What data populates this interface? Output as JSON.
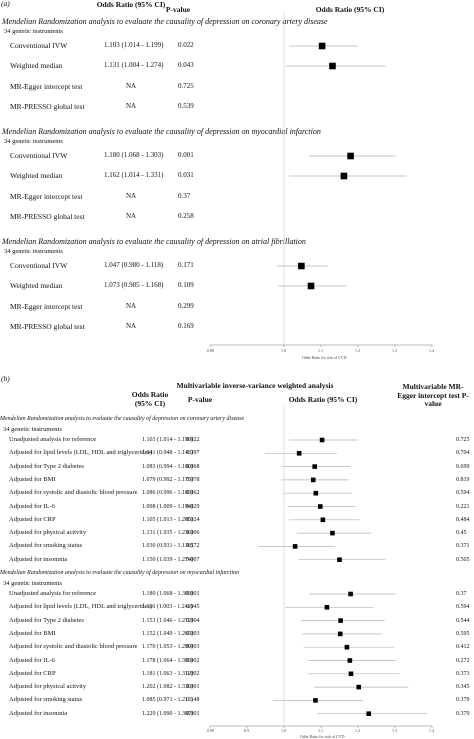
{
  "panel_a": {
    "label": "(a)",
    "headers": {
      "or_ci": "Odds Ratio (95% CI)",
      "pvalue": "P-value",
      "plot": "Odds Ratio (95% CI)"
    },
    "sections": [
      {
        "title": "Mendelian Randomization analysis to evaluate the causality of depression on coronary artery disease",
        "instruments": "34 genetic instruments",
        "rows": [
          {
            "method": "Conventional IVW",
            "or_ci": "1.103 (1.014 - 1.199)",
            "p": "0.022"
          },
          {
            "method": "Weighted median",
            "or_ci": "1.131 (1.004 - 1.274)",
            "p": "0.043"
          },
          {
            "method": "MR-Egger intercept test",
            "or_ci": "NA",
            "p": "0.725"
          },
          {
            "method": "MR-PRESSO global test",
            "or_ci": "NA",
            "p": "0.539"
          }
        ]
      },
      {
        "title": "Mendelian Randomization analysis to evaluate the causality of depression on myocardial infarction",
        "instruments": "34 genetic instruments",
        "rows": [
          {
            "method": "Conventional IVW",
            "or_ci": "1.180 (1.068 - 1.303)",
            "p": "0.001"
          },
          {
            "method": "Weighted median",
            "or_ci": "1.162 (1.014 - 1.331)",
            "p": "0.031"
          },
          {
            "method": "MR-Egger intercept test",
            "or_ci": "NA",
            "p": "0.37"
          },
          {
            "method": "MR-PRESSO global test",
            "or_ci": "NA",
            "p": "0.258"
          }
        ]
      },
      {
        "title": "Mendelian Randomization analysis to evaluate the causality of depression on atrial fibrillation",
        "instruments": "34 genetic instruments",
        "rows": [
          {
            "method": "Conventional IVW",
            "or_ci": "1.047 (0.980 - 1.118)",
            "p": "0.171"
          },
          {
            "method": "Weighted median",
            "or_ci": "1.073 (0.985 - 1.168)",
            "p": "0.109"
          },
          {
            "method": "MR-Egger intercept test",
            "or_ci": "NA",
            "p": "0.299"
          },
          {
            "method": "MR-PRESSO global test",
            "or_ci": "NA",
            "p": "0.169"
          }
        ]
      }
    ],
    "axis_ticks": [
      "0.80",
      "1.0",
      "1.1",
      "1.2",
      "1.3",
      "1.4"
    ],
    "axis_label": "Odds Ratio for risk of CVD"
  },
  "panel_b": {
    "label": "(b)",
    "headers": {
      "group": "Multivariable inverse-variance weighted analysis",
      "or_ci": "Odds Ratio (95% CI)",
      "pvalue": "P-value",
      "plot": "Odds Ratio (95% CI)",
      "egger": "Multivariable MR-Egger intercept test P-value"
    },
    "sections": [
      {
        "title": "Mendelian Randomization analysis to evaluate the causality of depression on coronary artery disease",
        "instruments": "34 genetic instruments",
        "rows": [
          {
            "method": "Unadjusted analysis for reference",
            "or_ci": "1.103 (1.014 - 1.199)",
            "p": "0.022",
            "egger": "0.725"
          },
          {
            "method": "Adjusted for lipid levels (LDL, HDL and triglycerides)",
            "or_ci": "1.041 (0.948 - 1.143)",
            "p": "0.397",
            "egger": "0.704"
          },
          {
            "method": "Adjusted for Type 2 diabetes",
            "or_ci": "1.083 (0.994 - 1.180)",
            "p": "0.068",
            "egger": "0.699"
          },
          {
            "method": "Adjusted for BMI",
            "or_ci": "1.079 (0.992 - 1.175)",
            "p": "0.078",
            "egger": "0.819"
          },
          {
            "method": "Adjusted for systolic and diastolic blood pressure",
            "or_ci": "1.086 (0.996 - 1.183)",
            "p": "0.062",
            "egger": "0.594"
          },
          {
            "method": "Adjusted for IL-6",
            "or_ci": "1.098 (1.009 - 1.194)",
            "p": "0.029",
            "egger": "0.221"
          },
          {
            "method": "Adjusted for CRP",
            "or_ci": "1.105 (1.013 - 1.205)",
            "p": "0.024",
            "egger": "0.484"
          },
          {
            "method": "Adjusted for physical activity",
            "or_ci": "1.131 (1.035 - 1.236)",
            "p": "0.006",
            "egger": "0.45"
          },
          {
            "method": "Adjusted for smoking status",
            "or_ci": "1.030 (0.931 - 1.138)",
            "p": "0.572",
            "egger": "0.371"
          },
          {
            "method": "Adjusted for insomnia",
            "or_ci": "1.150 (1.039 - 1.274)",
            "p": "0.007",
            "egger": "0.505"
          }
        ]
      },
      {
        "title": "Mendelian Randomization analysis to evaluate the causality of depression on myocardial infarction",
        "instruments": "34 genetic instruments",
        "rows": [
          {
            "method": "Unadjusted analysis for reference",
            "or_ci": "1.180 (1.068 - 1.303)",
            "p": "0.001",
            "egger": "0.37"
          },
          {
            "method": "Adjusted for lipid levels (LDL, HDL and triglycerides)",
            "or_ci": "1.116 (1.003 - 1.242)",
            "p": "0.045",
            "egger": "0.594"
          },
          {
            "method": "Adjusted for Type 2 diabetes",
            "or_ci": "1.153 (1.046 - 1.272)",
            "p": "0.004",
            "egger": "0.544"
          },
          {
            "method": "Adjusted for BMI",
            "or_ci": "1.152 (1.049 - 1.265)",
            "p": "0.003",
            "egger": "0.595"
          },
          {
            "method": "Adjusted for systolic and diastolic blood pressure",
            "or_ci": "1.170 (1.053 - 1.299)",
            "p": "0.003",
            "egger": "0.412"
          },
          {
            "method": "Adjusted for IL-6",
            "or_ci": "1.178 (1.064 - 1.303)",
            "p": "0.002",
            "egger": "0.272"
          },
          {
            "method": "Adjusted for CRP",
            "or_ci": "1.181 (1.063 - 1.312)",
            "p": "0.002",
            "egger": "0.373"
          },
          {
            "method": "Adjusted for physical activity",
            "or_ci": "1.202 (1.082 - 1.336)",
            "p": "0.001",
            "egger": "0.345"
          },
          {
            "method": "Adjusted for smoking status",
            "or_ci": "1.085 (0.971 - 1.213)",
            "p": "0.148",
            "egger": "0.379"
          },
          {
            "method": "Adjusted for insomnia",
            "or_ci": "1.229 (1.090 - 1.387)",
            "p": "0.001",
            "egger": "0.379"
          }
        ]
      }
    ],
    "axis_ticks": [
      "0.80",
      "0.9",
      "1.0",
      "1.1",
      "1.2",
      "1.3",
      "1.4"
    ],
    "axis_label": "Odds Ratio for risk of CVD"
  },
  "chart_data": [
    {
      "type": "scatter",
      "subtype": "forest",
      "xlim": [
        0.8,
        1.4
      ],
      "reference_line": 1.0,
      "series": [
        {
          "name": "",
          "points": [
            {
              "or": 1.103,
              "lo": 1.014,
              "hi": 1.199
            },
            {
              "or": 1.131,
              "lo": 1.004,
              "hi": 1.274
            },
            {
              "or": 1.18,
              "lo": 1.068,
              "hi": 1.303
            },
            {
              "or": 1.162,
              "lo": 1.014,
              "hi": 1.331
            },
            {
              "or": 1.047,
              "lo": 0.98,
              "hi": 1.118
            },
            {
              "or": 1.073,
              "lo": 0.985,
              "hi": 1.168
            }
          ]
        }
      ]
    },
    {
      "type": "scatter",
      "subtype": "forest",
      "xlim": [
        0.8,
        1.4
      ],
      "reference_line": 1.0,
      "series": [
        {
          "name": "",
          "points": [
            {
              "or": 1.103,
              "lo": 1.014,
              "hi": 1.199
            },
            {
              "or": 1.041,
              "lo": 0.948,
              "hi": 1.143
            },
            {
              "or": 1.083,
              "lo": 0.994,
              "hi": 1.18
            },
            {
              "or": 1.079,
              "lo": 0.992,
              "hi": 1.175
            },
            {
              "or": 1.086,
              "lo": 0.996,
              "hi": 1.183
            },
            {
              "or": 1.098,
              "lo": 1.009,
              "hi": 1.194
            },
            {
              "or": 1.105,
              "lo": 1.013,
              "hi": 1.205
            },
            {
              "or": 1.131,
              "lo": 1.035,
              "hi": 1.236
            },
            {
              "or": 1.03,
              "lo": 0.931,
              "hi": 1.138
            },
            {
              "or": 1.15,
              "lo": 1.039,
              "hi": 1.274
            },
            {
              "or": 1.18,
              "lo": 1.068,
              "hi": 1.303
            },
            {
              "or": 1.116,
              "lo": 1.003,
              "hi": 1.242
            },
            {
              "or": 1.153,
              "lo": 1.046,
              "hi": 1.272
            },
            {
              "or": 1.152,
              "lo": 1.049,
              "hi": 1.265
            },
            {
              "or": 1.17,
              "lo": 1.053,
              "hi": 1.299
            },
            {
              "or": 1.178,
              "lo": 1.064,
              "hi": 1.303
            },
            {
              "or": 1.181,
              "lo": 1.063,
              "hi": 1.312
            },
            {
              "or": 1.202,
              "lo": 1.082,
              "hi": 1.336
            },
            {
              "or": 1.085,
              "lo": 0.971,
              "hi": 1.213
            },
            {
              "or": 1.229,
              "lo": 1.09,
              "hi": 1.387
            }
          ]
        }
      ]
    }
  ]
}
